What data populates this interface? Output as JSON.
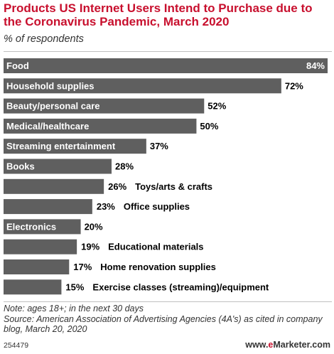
{
  "title": "Products US Internet Users Intend to Purchase due to the Coronavirus Pandemic, March 2020",
  "subtitle": "% of respondents",
  "footnote": {
    "note": "Note: ages 18+; in the next 30 days",
    "source": "Source: American Association of Advertising Agencies (4A's) as cited in company blog, March 20, 2020"
  },
  "chart_id": "254479",
  "brand": {
    "prefix": "www.",
    "accent": "e",
    "name": "Marketer",
    "suffix": ".com"
  },
  "colors": {
    "bar": "#5f5f5f",
    "title": "#c8102e",
    "text": "#000000",
    "label_on_bar": "#ffffff"
  },
  "chart_data": {
    "type": "bar",
    "orientation": "horizontal",
    "categories": [
      "Food",
      "Household supplies",
      "Beauty/personal care",
      "Medical/healthcare",
      "Streaming entertainment",
      "Books",
      "Toys/arts & crafts",
      "Office supplies",
      "Electronics",
      "Educational materials",
      "Home renovation supplies",
      "Exercise classes (streaming)/equipment"
    ],
    "values": [
      84,
      72,
      52,
      50,
      37,
      28,
      26,
      23,
      20,
      19,
      17,
      15
    ],
    "value_labels": [
      "84%",
      "72%",
      "52%",
      "50%",
      "37%",
      "28%",
      "26%",
      "23%",
      "20%",
      "19%",
      "17%",
      "15%"
    ],
    "xlim": [
      0,
      84
    ],
    "title": "Products US Internet Users Intend to Purchase due to the Coronavirus Pandemic, March 2020",
    "subtitle": "% of respondents",
    "xlabel": "",
    "ylabel": "",
    "grid": false,
    "legend": "none"
  }
}
